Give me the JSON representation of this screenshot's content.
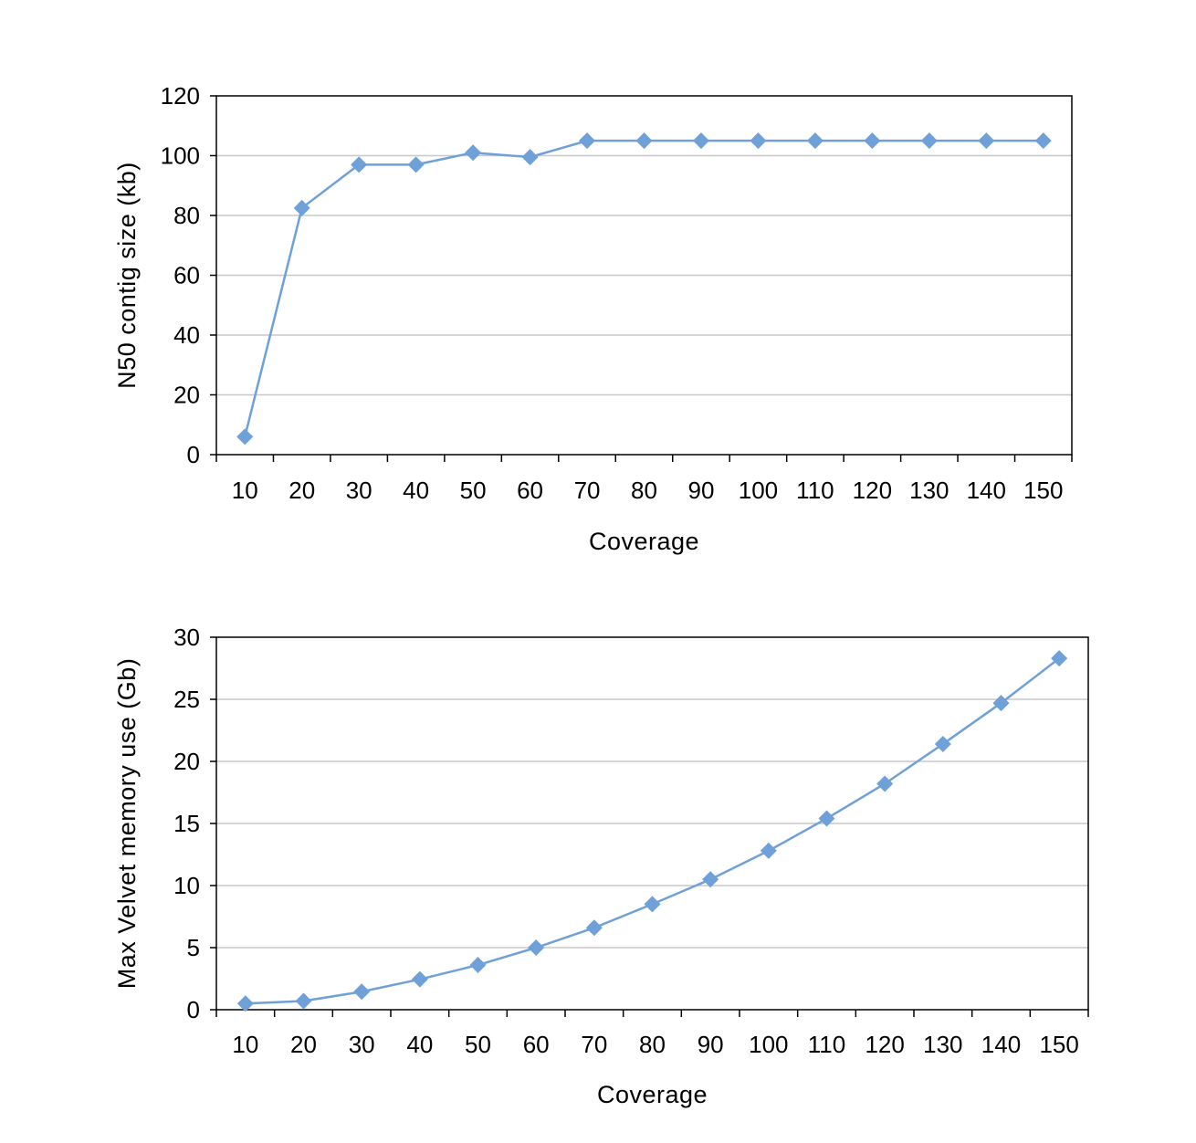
{
  "chart_data": [
    {
      "type": "line",
      "title": "",
      "xlabel": "Coverage",
      "ylabel": "N50 contig size (kb)",
      "categories": [
        "10",
        "20",
        "30",
        "40",
        "50",
        "60",
        "70",
        "80",
        "90",
        "100",
        "110",
        "120",
        "130",
        "140",
        "150"
      ],
      "yticks": [
        "0",
        "20",
        "40",
        "60",
        "80",
        "100",
        "120"
      ],
      "ylim": [
        0,
        120
      ],
      "grid": true,
      "legend": "none",
      "series_color": "#6fa0d8",
      "series": [
        {
          "values": [
            6,
            82.5,
            97,
            97,
            101,
            99.5,
            105,
            105,
            105,
            105,
            105,
            105,
            105,
            105,
            105
          ]
        }
      ]
    },
    {
      "type": "line",
      "title": "",
      "xlabel": "Coverage",
      "ylabel": "Max Velvet memory use (Gb)",
      "categories": [
        "10",
        "20",
        "30",
        "40",
        "50",
        "60",
        "70",
        "80",
        "90",
        "100",
        "110",
        "120",
        "130",
        "140",
        "150"
      ],
      "yticks": [
        "0",
        "5",
        "10",
        "15",
        "20",
        "25",
        "30"
      ],
      "ylim": [
        0,
        30
      ],
      "grid": true,
      "legend": "none",
      "series_color": "#6fa0d8",
      "series": [
        {
          "values": [
            0.5,
            0.7,
            1.45,
            2.45,
            3.6,
            5.0,
            6.6,
            8.5,
            10.5,
            12.8,
            15.4,
            18.2,
            21.4,
            24.7,
            28.3
          ]
        }
      ]
    }
  ]
}
